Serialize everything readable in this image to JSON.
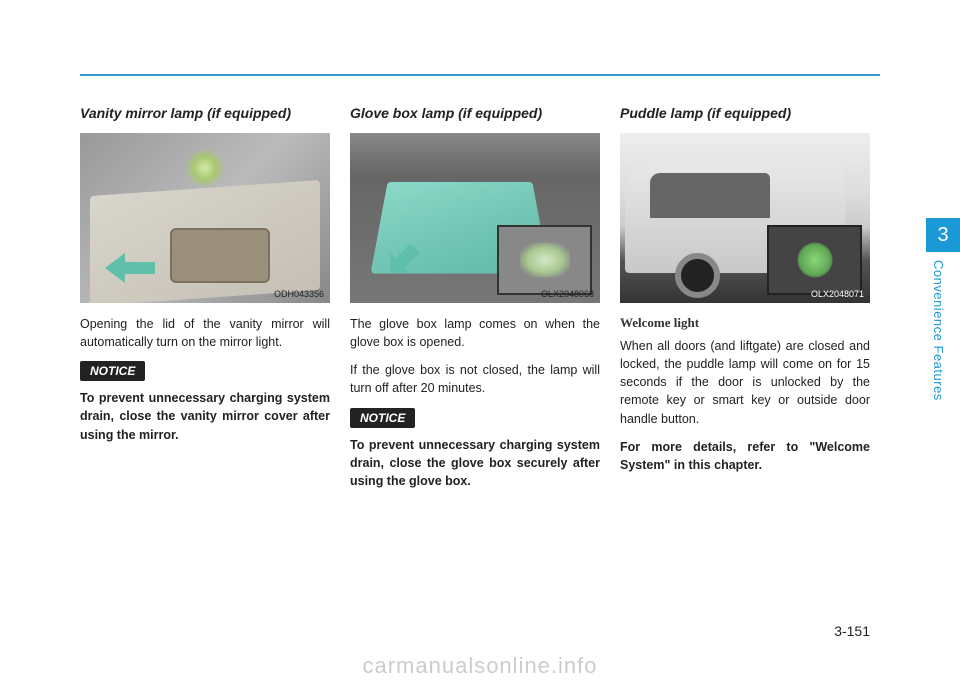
{
  "pageNumber": "3-151",
  "sideTab": "3",
  "sideLabel": "Convenience Features",
  "watermark": "carmanualsonline.info",
  "col1": {
    "title": "Vanity mirror lamp (if equipped)",
    "figCode": "ODH043356",
    "body1": "Opening the lid of the vanity mirror will automatically turn on the mirror light.",
    "noticeLabel": "NOTICE",
    "notice": "To prevent unnecessary charging system drain, close the vanity mirror cover after using the mirror."
  },
  "col2": {
    "title": "Glove box lamp (if equipped)",
    "figCode": "OLX2048068",
    "body1": "The glove box lamp comes on when the glove box is opened.",
    "body2": "If the glove box is not closed, the lamp will turn off after 20 minutes.",
    "noticeLabel": "NOTICE",
    "notice": "To prevent unnecessary charging system drain, close the glove box securely after using the glove box."
  },
  "col3": {
    "title": "Puddle lamp (if equipped)",
    "figCode": "OLX2048071",
    "subheading": "Welcome light",
    "body1": "When all doors (and liftgate) are closed and locked, the puddle lamp will come on for 15 seconds if the door is unlocked by the remote key or smart key or outside door handle button.",
    "ref": "For more details, refer to \"Welcome System\" in this chapter."
  }
}
